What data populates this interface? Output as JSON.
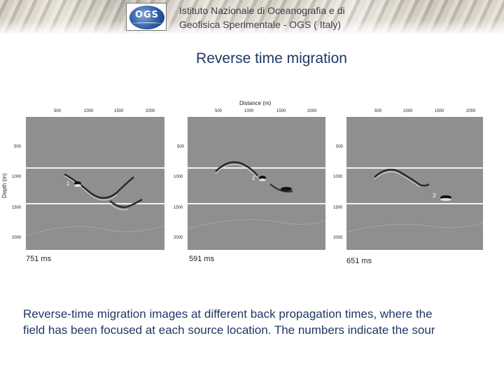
{
  "header": {
    "logo_text": "OGS",
    "institute_line1": "Istituto Nazionale di Oceanografia e di",
    "institute_line2": "Geofisica Sperimentale - OGS ( Italy)"
  },
  "title": "Reverse time migration",
  "figure": {
    "xlabel": "Distance (m)",
    "ylabel": "Depth (m)",
    "x_ticks": [
      "500",
      "1000",
      "1500",
      "2000"
    ],
    "y_ticks": [
      "500",
      "1000",
      "1500",
      "2000"
    ],
    "panels": [
      {
        "time": "751 ms",
        "marker": "1"
      },
      {
        "time": "591 ms",
        "marker": "2"
      },
      {
        "time": "651 ms",
        "marker": "3"
      }
    ]
  },
  "caption": {
    "line1": "Reverse-time migration images at different back propagation times, where the",
    "line2": "field has been focused at each source location. The numbers indicate the sour"
  }
}
